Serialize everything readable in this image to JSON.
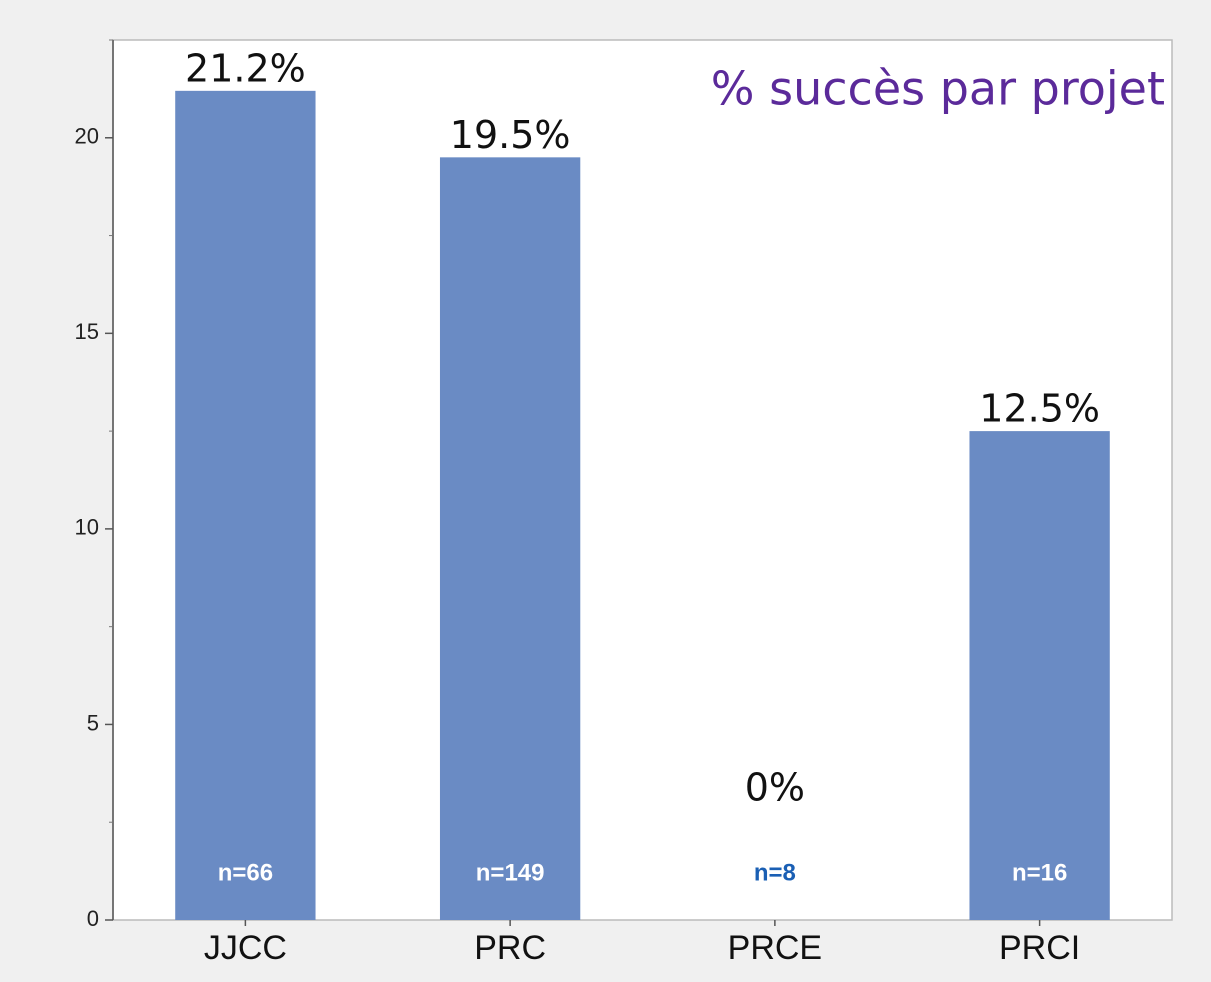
{
  "chart_data": {
    "type": "bar",
    "title": "% succès par projet",
    "categories": [
      "JJCC",
      "PRC",
      "PRCE",
      "PRCI"
    ],
    "values": [
      21.2,
      19.5,
      0,
      12.5
    ],
    "value_labels": [
      "21.2%",
      "19.5%",
      "0%",
      "12.5%"
    ],
    "annotations": [
      "n=66",
      "n=149",
      "n=8",
      "n=16"
    ],
    "color": "#6a8bc4",
    "ylim": [
      0,
      22.5
    ],
    "yticks": [
      0,
      5,
      10,
      15,
      20
    ],
    "minor_yticks": [
      2.5,
      7.5,
      12.5,
      17.5,
      22.5
    ],
    "grid": false
  }
}
